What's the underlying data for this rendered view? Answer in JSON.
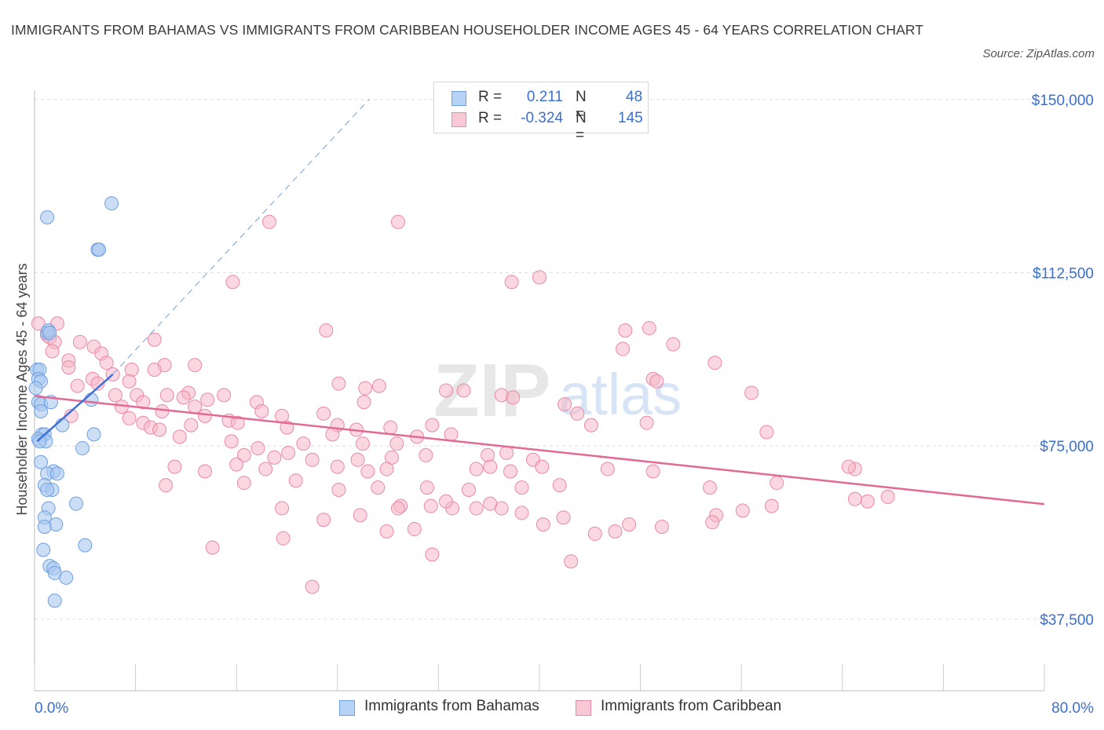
{
  "title": "IMMIGRANTS FROM BAHAMAS VS IMMIGRANTS FROM CARIBBEAN HOUSEHOLDER INCOME AGES 45 - 64 YEARS CORRELATION CHART",
  "source": "Source: ZipAtlas.com",
  "watermark": {
    "zip": "ZIP",
    "atlas": "atlas"
  },
  "colors": {
    "bahamas_fill": "#a9c8f0",
    "bahamas_stroke": "#6f9fe0",
    "bahamas_line": "#3f6fd8",
    "caribbean_fill": "#f5b7c9",
    "caribbean_stroke": "#e98aa8",
    "caribbean_line": "#e26a95",
    "axis_label": "#3a6fd0",
    "grid": "#dddddd"
  },
  "legend": {
    "rows": [
      {
        "r_label": "R =",
        "r_value": "0.211",
        "n_label": "N =",
        "n_value": "48"
      },
      {
        "r_label": "R =",
        "r_value": "-0.324",
        "n_label": "N =",
        "n_value": "145"
      }
    ]
  },
  "bottom_legend": {
    "bahamas": "Immigrants from Bahamas",
    "caribbean": "Immigrants from Caribbean"
  },
  "chart_data": {
    "type": "scatter",
    "title": "IMMIGRANTS FROM BAHAMAS VS IMMIGRANTS FROM CARIBBEAN HOUSEHOLDER INCOME AGES 45 - 64 YEARS CORRELATION CHART",
    "xlabel": "",
    "ylabel": "Householder Income Ages 45 - 64 years",
    "xlim": [
      0,
      80
    ],
    "ylim": [
      22000,
      152000
    ],
    "x_tick_labels": [
      "0.0%",
      "80.0%"
    ],
    "y_ticks": [
      37500,
      75000,
      112500,
      150000
    ],
    "y_tick_labels": [
      "$37,500",
      "$75,000",
      "$112,500",
      "$150,000"
    ],
    "grid": "horizontal dashed",
    "series": [
      {
        "name": "Immigrants from Bahamas",
        "r": 0.211,
        "n": 48,
        "trend": {
          "x": [
            0.2,
            6.2
          ],
          "y": [
            76000,
            90500
          ]
        },
        "trend_extension": {
          "x": [
            6.2,
            26.5
          ],
          "y": [
            90500,
            150000
          ]
        },
        "points": [
          [
            1.0,
            124500
          ],
          [
            6.1,
            127500
          ],
          [
            5.0,
            117500
          ],
          [
            5.1,
            117500
          ],
          [
            1.0,
            99500
          ],
          [
            1.1,
            100000
          ],
          [
            1.2,
            99500
          ],
          [
            0.2,
            91500
          ],
          [
            0.4,
            91500
          ],
          [
            0.3,
            89500
          ],
          [
            0.5,
            89000
          ],
          [
            0.1,
            87500
          ],
          [
            0.3,
            84500
          ],
          [
            0.5,
            84000
          ],
          [
            1.3,
            84500
          ],
          [
            4.5,
            85000
          ],
          [
            0.5,
            82500
          ],
          [
            2.2,
            79500
          ],
          [
            0.6,
            77500
          ],
          [
            0.8,
            77500
          ],
          [
            0.3,
            76500
          ],
          [
            0.9,
            76000
          ],
          [
            0.4,
            76000
          ],
          [
            4.7,
            77500
          ],
          [
            3.8,
            74500
          ],
          [
            0.5,
            71500
          ],
          [
            1.5,
            69500
          ],
          [
            1.0,
            69000
          ],
          [
            1.8,
            69000
          ],
          [
            0.8,
            66500
          ],
          [
            1.4,
            65500
          ],
          [
            1.0,
            65500
          ],
          [
            3.3,
            62500
          ],
          [
            1.1,
            61500
          ],
          [
            0.8,
            59500
          ],
          [
            1.7,
            58000
          ],
          [
            0.8,
            57500
          ],
          [
            0.7,
            52500
          ],
          [
            4.0,
            53500
          ],
          [
            1.2,
            49000
          ],
          [
            1.5,
            48500
          ],
          [
            1.6,
            47500
          ],
          [
            2.5,
            46500
          ],
          [
            1.6,
            41500
          ]
        ]
      },
      {
        "name": "Immigrants from Caribbean",
        "r": -0.324,
        "n": 145,
        "trend": {
          "x": [
            0,
            80
          ],
          "y": [
            85800,
            62400
          ]
        },
        "points": [
          [
            0.3,
            101500
          ],
          [
            1.8,
            101500
          ],
          [
            1.0,
            99000
          ],
          [
            1.2,
            98500
          ],
          [
            1.6,
            97500
          ],
          [
            3.6,
            97500
          ],
          [
            4.7,
            96500
          ],
          [
            5.3,
            95000
          ],
          [
            1.4,
            95500
          ],
          [
            2.7,
            93500
          ],
          [
            5.7,
            93000
          ],
          [
            10.3,
            92500
          ],
          [
            7.7,
            91500
          ],
          [
            9.5,
            91500
          ],
          [
            2.7,
            92000
          ],
          [
            6.2,
            90500
          ],
          [
            4.6,
            89500
          ],
          [
            3.4,
            88000
          ],
          [
            5.0,
            88500
          ],
          [
            7.5,
            89000
          ],
          [
            6.4,
            86000
          ],
          [
            8.1,
            86000
          ],
          [
            10.5,
            86000
          ],
          [
            12.2,
            86500
          ],
          [
            15.0,
            86000
          ],
          [
            11.8,
            85500
          ],
          [
            13.7,
            85000
          ],
          [
            17.6,
            84500
          ],
          [
            8.6,
            84500
          ],
          [
            6.9,
            83500
          ],
          [
            12.7,
            83500
          ],
          [
            18.0,
            82500
          ],
          [
            19.6,
            81500
          ],
          [
            22.9,
            82000
          ],
          [
            10.1,
            82500
          ],
          [
            2.9,
            81500
          ],
          [
            7.5,
            81000
          ],
          [
            13.5,
            81500
          ],
          [
            15.4,
            80500
          ],
          [
            16.1,
            80000
          ],
          [
            8.6,
            80000
          ],
          [
            12.4,
            79500
          ],
          [
            9.2,
            79000
          ],
          [
            20.0,
            79000
          ],
          [
            24.0,
            79500
          ],
          [
            25.5,
            78500
          ],
          [
            28.2,
            79000
          ],
          [
            31.5,
            79500
          ],
          [
            33.0,
            77500
          ],
          [
            9.9,
            78500
          ],
          [
            11.5,
            77000
          ],
          [
            23.6,
            77500
          ],
          [
            15.6,
            76000
          ],
          [
            21.3,
            75500
          ],
          [
            26.0,
            75500
          ],
          [
            28.7,
            75500
          ],
          [
            30.3,
            77000
          ],
          [
            17.7,
            74500
          ],
          [
            19.0,
            72500
          ],
          [
            20.1,
            73500
          ],
          [
            16.6,
            73000
          ],
          [
            22.0,
            72000
          ],
          [
            25.6,
            72000
          ],
          [
            28.3,
            72500
          ],
          [
            31.0,
            73000
          ],
          [
            35.9,
            73000
          ],
          [
            37.4,
            73500
          ],
          [
            39.5,
            72000
          ],
          [
            11.1,
            70500
          ],
          [
            13.5,
            69500
          ],
          [
            16.0,
            71000
          ],
          [
            18.3,
            70000
          ],
          [
            24.0,
            70500
          ],
          [
            26.4,
            69500
          ],
          [
            27.9,
            70000
          ],
          [
            35.0,
            70000
          ],
          [
            36.1,
            70500
          ],
          [
            37.7,
            69500
          ],
          [
            40.2,
            70500
          ],
          [
            45.4,
            70000
          ],
          [
            10.4,
            66500
          ],
          [
            16.6,
            67000
          ],
          [
            20.7,
            67500
          ],
          [
            24.1,
            65500
          ],
          [
            27.2,
            66000
          ],
          [
            31.1,
            66000
          ],
          [
            34.4,
            65500
          ],
          [
            38.6,
            66000
          ],
          [
            41.6,
            66500
          ],
          [
            49.0,
            69500
          ],
          [
            53.5,
            66000
          ],
          [
            58.8,
            67000
          ],
          [
            65.0,
            70000
          ],
          [
            67.6,
            64000
          ],
          [
            66.0,
            63000
          ],
          [
            58.4,
            62000
          ],
          [
            56.1,
            61000
          ],
          [
            54.0,
            60000
          ],
          [
            53.7,
            58500
          ],
          [
            49.7,
            57500
          ],
          [
            47.1,
            58000
          ],
          [
            46.0,
            56500
          ],
          [
            44.4,
            56000
          ],
          [
            40.3,
            58000
          ],
          [
            41.9,
            59500
          ],
          [
            38.6,
            60500
          ],
          [
            37.0,
            61500
          ],
          [
            35.0,
            61500
          ],
          [
            33.1,
            61500
          ],
          [
            31.4,
            62000
          ],
          [
            29.0,
            62000
          ],
          [
            25.8,
            60000
          ],
          [
            22.9,
            59000
          ],
          [
            19.6,
            61500
          ],
          [
            27.9,
            56500
          ],
          [
            30.1,
            57000
          ],
          [
            19.7,
            55000
          ],
          [
            14.1,
            53000
          ],
          [
            31.5,
            51500
          ],
          [
            42.5,
            50000
          ],
          [
            22.0,
            44500
          ],
          [
            28.8,
            61500
          ],
          [
            32.6,
            63000
          ],
          [
            36.1,
            62500
          ],
          [
            9.5,
            98000
          ],
          [
            12.7,
            92500
          ],
          [
            18.6,
            123500
          ],
          [
            28.8,
            123500
          ],
          [
            15.7,
            110500
          ],
          [
            37.8,
            110500
          ],
          [
            40.0,
            111500
          ],
          [
            23.1,
            100000
          ],
          [
            46.8,
            100000
          ],
          [
            48.7,
            100500
          ],
          [
            50.6,
            97000
          ],
          [
            46.6,
            96000
          ],
          [
            53.9,
            93000
          ],
          [
            49.0,
            89500
          ],
          [
            49.3,
            89000
          ],
          [
            24.1,
            88500
          ],
          [
            26.2,
            87500
          ],
          [
            27.3,
            88000
          ],
          [
            32.6,
            87000
          ],
          [
            34.0,
            87000
          ],
          [
            37.0,
            86000
          ],
          [
            37.9,
            85500
          ],
          [
            56.8,
            86500
          ],
          [
            26.1,
            84500
          ],
          [
            42.0,
            84000
          ],
          [
            43.0,
            82000
          ],
          [
            44.1,
            79500
          ],
          [
            48.5,
            80000
          ],
          [
            58.0,
            78000
          ],
          [
            64.5,
            70500
          ],
          [
            65.0,
            63500
          ]
        ]
      }
    ]
  }
}
